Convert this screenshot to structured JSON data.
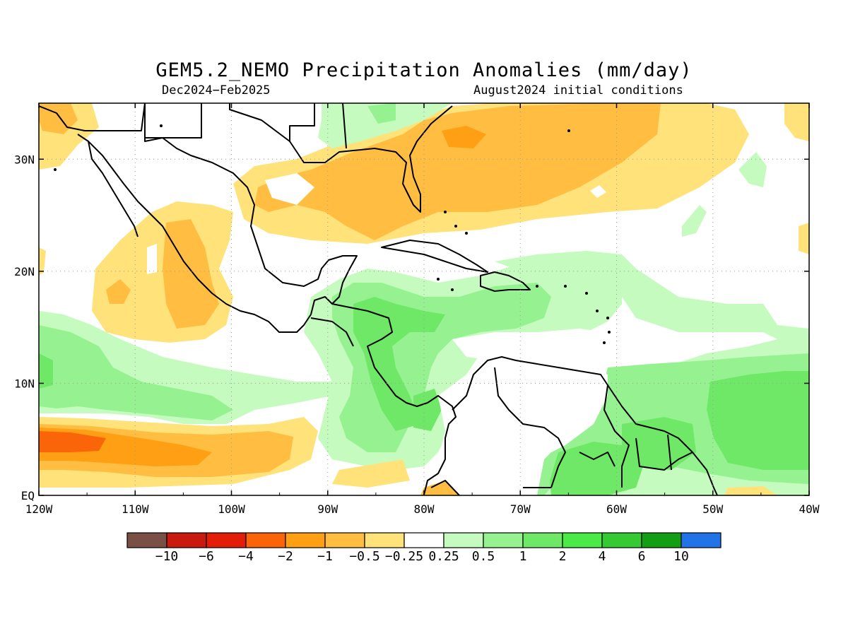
{
  "title": "GEM5.2_NEMO Precipitation Anomalies (mm/day)",
  "period": "Dec2024−Feb2025",
  "init": "August2024 initial conditions",
  "axes": {
    "lat_labels": [
      "30N",
      "20N",
      "10N",
      "EQ"
    ],
    "lat_values": [
      30,
      20,
      10,
      0
    ],
    "lon_labels": [
      "120W",
      "110W",
      "100W",
      "90W",
      "80W",
      "70W",
      "60W",
      "50W",
      "40W"
    ],
    "lon_values": [
      -120,
      -110,
      -100,
      -90,
      -80,
      -70,
      -60,
      -50,
      -40
    ],
    "lon_range": [
      -120,
      -40
    ],
    "lat_range": [
      0,
      35
    ],
    "grid": "dotted"
  },
  "colorbar": {
    "colors": [
      "#7a4f45",
      "#c81a0f",
      "#e31e08",
      "#fa650a",
      "#ff9f13",
      "#ffbd42",
      "#ffe27a",
      "#ffffff",
      "#c5fbbf",
      "#96f291",
      "#6fe867",
      "#4cea46",
      "#35c933",
      "#139e14",
      "#2273e8"
    ],
    "labels": [
      "−10",
      "−6",
      "−4",
      "−2",
      "−1",
      "−0.5",
      "−0.25",
      "0.25",
      "0.5",
      "1",
      "2",
      "4",
      "6",
      "10"
    ]
  }
}
